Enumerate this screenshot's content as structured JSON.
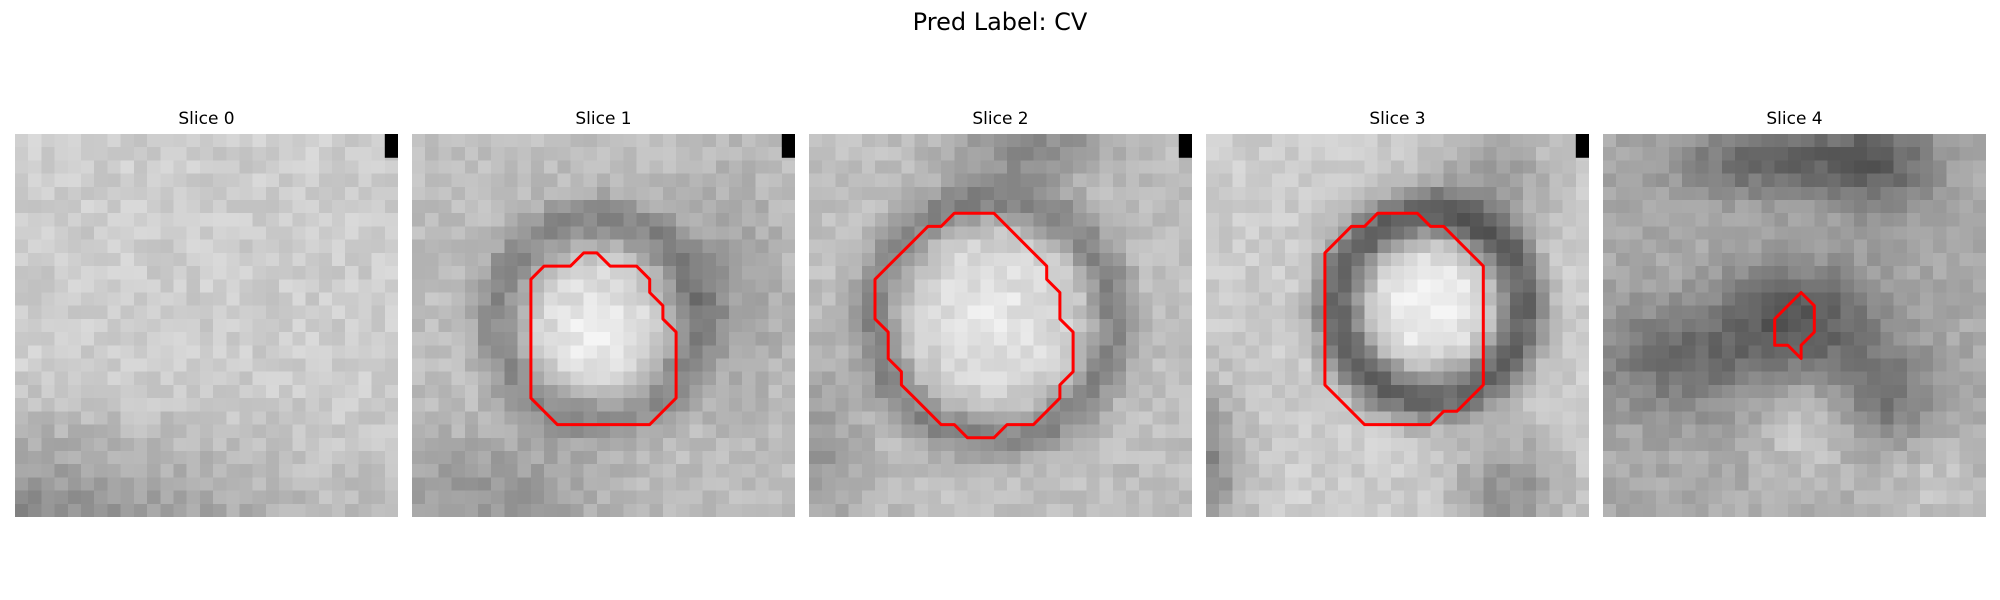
{
  "figure": {
    "title": "Pred Label: CV",
    "slices": [
      {
        "label": "Slice 0",
        "has_contour": false,
        "has_marker": true
      },
      {
        "label": "Slice 1",
        "has_contour": true,
        "has_marker": true
      },
      {
        "label": "Slice 2",
        "has_contour": true,
        "has_marker": true
      },
      {
        "label": "Slice 3",
        "has_contour": true,
        "has_marker": true
      },
      {
        "label": "Slice 4",
        "has_contour": true,
        "has_marker": false
      }
    ],
    "colormap": "gray",
    "contour_color": "#ff0000"
  }
}
